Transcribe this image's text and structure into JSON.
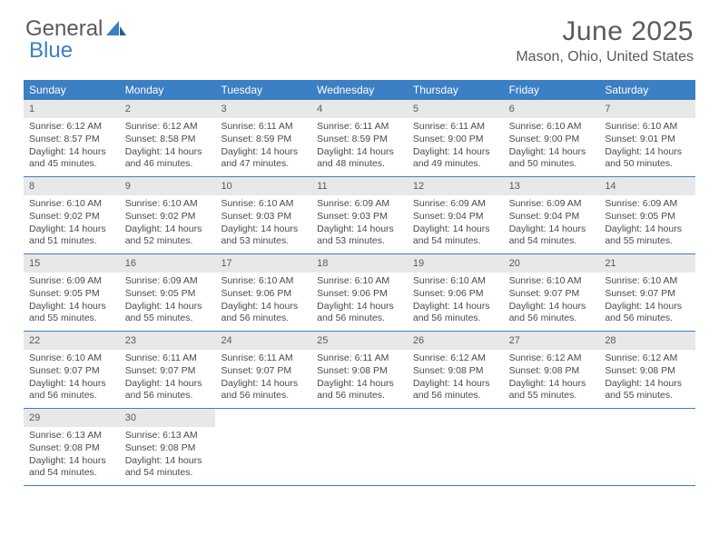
{
  "logo": {
    "text1": "General",
    "text2": "Blue"
  },
  "title": "June 2025",
  "location": "Mason, Ohio, United States",
  "colors": {
    "header_bg": "#3b7fc4",
    "header_text": "#ffffff",
    "daynum_bg": "#e8e8e8",
    "cell_border": "#3b7fc4",
    "body_text": "#4a4a4a",
    "title_text": "#5a5a5a"
  },
  "day_headers": [
    "Sunday",
    "Monday",
    "Tuesday",
    "Wednesday",
    "Thursday",
    "Friday",
    "Saturday"
  ],
  "days": [
    {
      "n": 1,
      "sunrise": "6:12 AM",
      "sunset": "8:57 PM",
      "dl_h": 14,
      "dl_m": 45
    },
    {
      "n": 2,
      "sunrise": "6:12 AM",
      "sunset": "8:58 PM",
      "dl_h": 14,
      "dl_m": 46
    },
    {
      "n": 3,
      "sunrise": "6:11 AM",
      "sunset": "8:59 PM",
      "dl_h": 14,
      "dl_m": 47
    },
    {
      "n": 4,
      "sunrise": "6:11 AM",
      "sunset": "8:59 PM",
      "dl_h": 14,
      "dl_m": 48
    },
    {
      "n": 5,
      "sunrise": "6:11 AM",
      "sunset": "9:00 PM",
      "dl_h": 14,
      "dl_m": 49
    },
    {
      "n": 6,
      "sunrise": "6:10 AM",
      "sunset": "9:00 PM",
      "dl_h": 14,
      "dl_m": 50
    },
    {
      "n": 7,
      "sunrise": "6:10 AM",
      "sunset": "9:01 PM",
      "dl_h": 14,
      "dl_m": 50
    },
    {
      "n": 8,
      "sunrise": "6:10 AM",
      "sunset": "9:02 PM",
      "dl_h": 14,
      "dl_m": 51
    },
    {
      "n": 9,
      "sunrise": "6:10 AM",
      "sunset": "9:02 PM",
      "dl_h": 14,
      "dl_m": 52
    },
    {
      "n": 10,
      "sunrise": "6:10 AM",
      "sunset": "9:03 PM",
      "dl_h": 14,
      "dl_m": 53
    },
    {
      "n": 11,
      "sunrise": "6:09 AM",
      "sunset": "9:03 PM",
      "dl_h": 14,
      "dl_m": 53
    },
    {
      "n": 12,
      "sunrise": "6:09 AM",
      "sunset": "9:04 PM",
      "dl_h": 14,
      "dl_m": 54
    },
    {
      "n": 13,
      "sunrise": "6:09 AM",
      "sunset": "9:04 PM",
      "dl_h": 14,
      "dl_m": 54
    },
    {
      "n": 14,
      "sunrise": "6:09 AM",
      "sunset": "9:05 PM",
      "dl_h": 14,
      "dl_m": 55
    },
    {
      "n": 15,
      "sunrise": "6:09 AM",
      "sunset": "9:05 PM",
      "dl_h": 14,
      "dl_m": 55
    },
    {
      "n": 16,
      "sunrise": "6:09 AM",
      "sunset": "9:05 PM",
      "dl_h": 14,
      "dl_m": 55
    },
    {
      "n": 17,
      "sunrise": "6:10 AM",
      "sunset": "9:06 PM",
      "dl_h": 14,
      "dl_m": 56
    },
    {
      "n": 18,
      "sunrise": "6:10 AM",
      "sunset": "9:06 PM",
      "dl_h": 14,
      "dl_m": 56
    },
    {
      "n": 19,
      "sunrise": "6:10 AM",
      "sunset": "9:06 PM",
      "dl_h": 14,
      "dl_m": 56
    },
    {
      "n": 20,
      "sunrise": "6:10 AM",
      "sunset": "9:07 PM",
      "dl_h": 14,
      "dl_m": 56
    },
    {
      "n": 21,
      "sunrise": "6:10 AM",
      "sunset": "9:07 PM",
      "dl_h": 14,
      "dl_m": 56
    },
    {
      "n": 22,
      "sunrise": "6:10 AM",
      "sunset": "9:07 PM",
      "dl_h": 14,
      "dl_m": 56
    },
    {
      "n": 23,
      "sunrise": "6:11 AM",
      "sunset": "9:07 PM",
      "dl_h": 14,
      "dl_m": 56
    },
    {
      "n": 24,
      "sunrise": "6:11 AM",
      "sunset": "9:07 PM",
      "dl_h": 14,
      "dl_m": 56
    },
    {
      "n": 25,
      "sunrise": "6:11 AM",
      "sunset": "9:08 PM",
      "dl_h": 14,
      "dl_m": 56
    },
    {
      "n": 26,
      "sunrise": "6:12 AM",
      "sunset": "9:08 PM",
      "dl_h": 14,
      "dl_m": 56
    },
    {
      "n": 27,
      "sunrise": "6:12 AM",
      "sunset": "9:08 PM",
      "dl_h": 14,
      "dl_m": 55
    },
    {
      "n": 28,
      "sunrise": "6:12 AM",
      "sunset": "9:08 PM",
      "dl_h": 14,
      "dl_m": 55
    },
    {
      "n": 29,
      "sunrise": "6:13 AM",
      "sunset": "9:08 PM",
      "dl_h": 14,
      "dl_m": 54
    },
    {
      "n": 30,
      "sunrise": "6:13 AM",
      "sunset": "9:08 PM",
      "dl_h": 14,
      "dl_m": 54
    }
  ],
  "labels": {
    "sunrise": "Sunrise:",
    "sunset": "Sunset:",
    "daylight": "Daylight:",
    "hours": "hours",
    "and": "and",
    "minutes": "minutes."
  },
  "layout": {
    "start_weekday": 0,
    "total_cells": 35
  }
}
